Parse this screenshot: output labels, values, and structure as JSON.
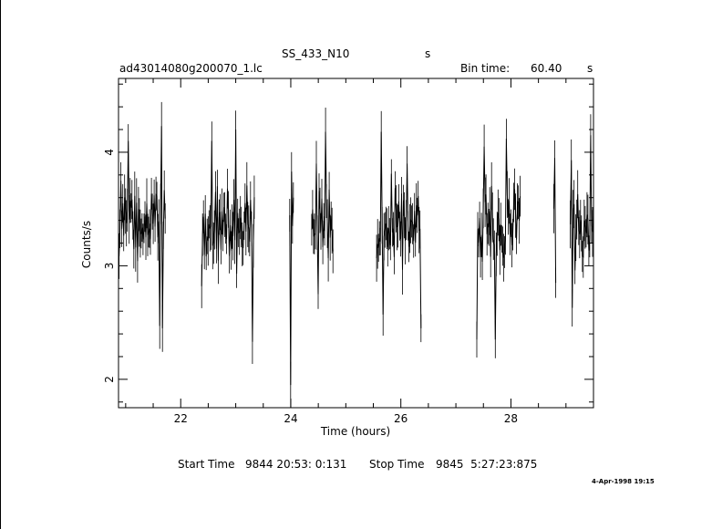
{
  "header": {
    "title": "SS_433_N10",
    "title_unit": "s",
    "file_name": "ad43014080g200070_1.lc",
    "bin_time_label": "Bin time:",
    "bin_time_value": "60.40",
    "bin_time_unit": "s"
  },
  "footer": {
    "start_label": "Start Time",
    "start_value": "9844 20:53: 0:131",
    "stop_label": "Stop Time",
    "stop_value": "9845  5:27:23:875",
    "timestamp": "4-Apr-1998 19:15"
  },
  "chart_data": {
    "type": "line",
    "xlabel": "Time (hours)",
    "ylabel": "Counts/s",
    "xlim": [
      20.87,
      29.5
    ],
    "ylim": [
      1.75,
      4.65
    ],
    "xticks": [
      22,
      24,
      26,
      28
    ],
    "yticks": [
      2,
      3,
      4
    ],
    "grid": false,
    "segments": [
      {
        "start": 20.88,
        "end": 21.72,
        "mean": 3.35,
        "spread": 0.32,
        "spikes": [
          [
            21.65,
            4.23
          ],
          [
            21.62,
            2.47
          ],
          [
            21.67,
            2.45
          ],
          [
            21.05,
            4.1
          ]
        ]
      },
      {
        "start": 22.38,
        "end": 23.35,
        "mean": 3.35,
        "spread": 0.35,
        "spikes": [
          [
            23.3,
            2.33
          ],
          [
            23.0,
            4.2
          ],
          [
            22.57,
            4.1
          ],
          [
            22.38,
            2.82
          ]
        ]
      },
      {
        "start": 23.98,
        "end": 24.06,
        "mean": 3.2,
        "spread": 0.35,
        "spikes": [
          [
            23.99,
            1.95
          ],
          [
            24.04,
            3.6
          ],
          [
            24.02,
            3.83
          ]
        ]
      },
      {
        "start": 24.38,
        "end": 24.78,
        "mean": 3.35,
        "spread": 0.3,
        "spikes": [
          [
            24.64,
            4.18
          ],
          [
            24.47,
            3.9
          ],
          [
            24.5,
            2.75
          ]
        ]
      },
      {
        "start": 25.56,
        "end": 26.38,
        "mean": 3.35,
        "spread": 0.32,
        "spikes": [
          [
            25.64,
            4.18
          ],
          [
            26.37,
            2.45
          ],
          [
            26.12,
            3.9
          ],
          [
            25.67,
            2.57
          ]
        ]
      },
      {
        "start": 27.38,
        "end": 28.18,
        "mean": 3.3,
        "spread": 0.32,
        "spikes": [
          [
            27.38,
            2.35
          ],
          [
            27.52,
            4.05
          ],
          [
            27.72,
            2.35
          ],
          [
            27.92,
            4.12
          ]
        ]
      },
      {
        "start": 28.78,
        "end": 28.83,
        "mean": 3.35,
        "spread": 0.3,
        "spikes": [
          [
            28.8,
            3.95
          ],
          [
            28.81,
            2.85
          ]
        ]
      },
      {
        "start": 29.08,
        "end": 29.5,
        "mean": 3.35,
        "spread": 0.3,
        "spikes": [
          [
            29.1,
            3.93
          ],
          [
            29.12,
            2.63
          ],
          [
            29.45,
            4.15
          ]
        ]
      }
    ]
  }
}
